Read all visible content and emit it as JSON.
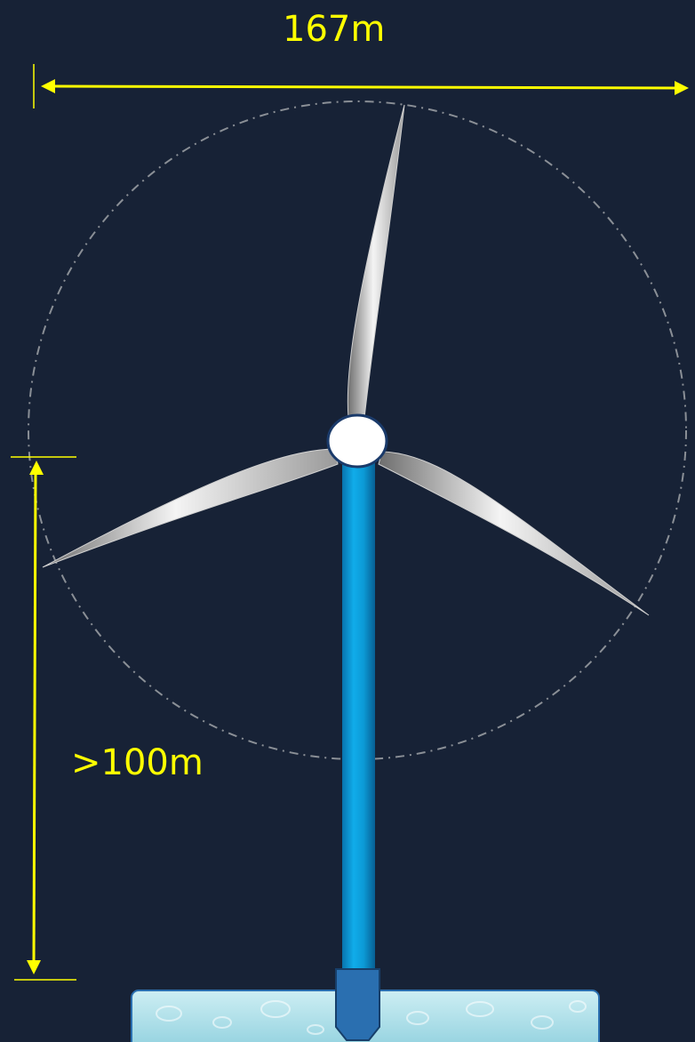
{
  "dimensions": {
    "rotor_diameter_label": "167m",
    "hub_height_label": ">100m"
  },
  "colors": {
    "background": "#172236",
    "dimension_line": "#ffff00",
    "tower": "#0aa0dc",
    "blade": "#e8e8e8",
    "hub": "#ffffff",
    "rotor_circle": "#8a8f96",
    "foundation": "#2a6fb0",
    "water": "#bfe6ee"
  }
}
